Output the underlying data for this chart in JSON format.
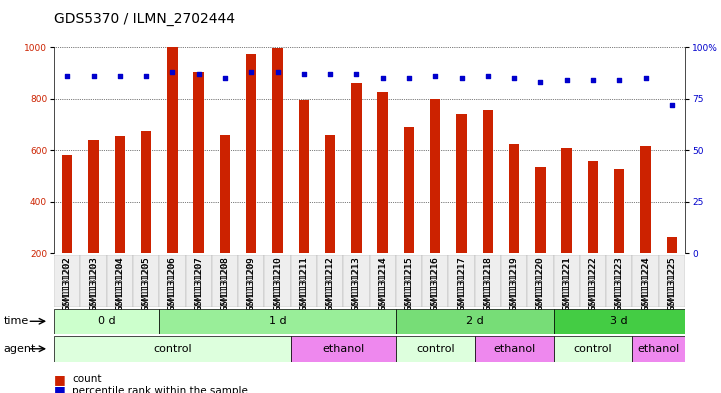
{
  "title": "GDS5370 / ILMN_2702444",
  "samples": [
    "GSM1131202",
    "GSM1131203",
    "GSM1131204",
    "GSM1131205",
    "GSM1131206",
    "GSM1131207",
    "GSM1131208",
    "GSM1131209",
    "GSM1131210",
    "GSM1131211",
    "GSM1131212",
    "GSM1131213",
    "GSM1131214",
    "GSM1131215",
    "GSM1131216",
    "GSM1131217",
    "GSM1131218",
    "GSM1131219",
    "GSM1131220",
    "GSM1131221",
    "GSM1131222",
    "GSM1131223",
    "GSM1131224",
    "GSM1131225"
  ],
  "counts": [
    580,
    640,
    655,
    675,
    1000,
    905,
    660,
    975,
    998,
    795,
    660,
    860,
    825,
    690,
    800,
    742,
    758,
    625,
    537,
    608,
    560,
    527,
    615,
    262
  ],
  "percentile_ranks": [
    86,
    86,
    86,
    86,
    88,
    87,
    85,
    88,
    88,
    87,
    87,
    87,
    85,
    85,
    86,
    85,
    86,
    85,
    83,
    84,
    84,
    84,
    85,
    72
  ],
  "bar_color": "#cc2200",
  "dot_color": "#0000cc",
  "background_color": "#ffffff",
  "ylim_left": [
    200,
    1000
  ],
  "ylim_right": [
    0,
    100
  ],
  "yticks_left": [
    200,
    400,
    600,
    800,
    1000
  ],
  "yticks_right": [
    0,
    25,
    50,
    75,
    100
  ],
  "time_groups": [
    {
      "label": "0 d",
      "start": 0,
      "end": 4,
      "color": "#ccffcc"
    },
    {
      "label": "1 d",
      "start": 4,
      "end": 13,
      "color": "#99ee99"
    },
    {
      "label": "2 d",
      "start": 13,
      "end": 19,
      "color": "#77dd77"
    },
    {
      "label": "3 d",
      "start": 19,
      "end": 24,
      "color": "#44cc44"
    }
  ],
  "agent_groups": [
    {
      "label": "control",
      "start": 0,
      "end": 9,
      "color": "#ddffdd"
    },
    {
      "label": "ethanol",
      "start": 9,
      "end": 13,
      "color": "#ee88ee"
    },
    {
      "label": "control",
      "start": 13,
      "end": 16,
      "color": "#ddffdd"
    },
    {
      "label": "ethanol",
      "start": 16,
      "end": 19,
      "color": "#ee88ee"
    },
    {
      "label": "control",
      "start": 19,
      "end": 22,
      "color": "#ddffdd"
    },
    {
      "label": "ethanol",
      "start": 22,
      "end": 24,
      "color": "#ee88ee"
    }
  ],
  "time_label": "time",
  "agent_label": "agent",
  "legend_count_label": "count",
  "legend_percentile_label": "percentile rank within the sample",
  "title_fontsize": 10,
  "tick_fontsize": 6.5,
  "row_fontsize": 8,
  "bar_width": 0.4
}
